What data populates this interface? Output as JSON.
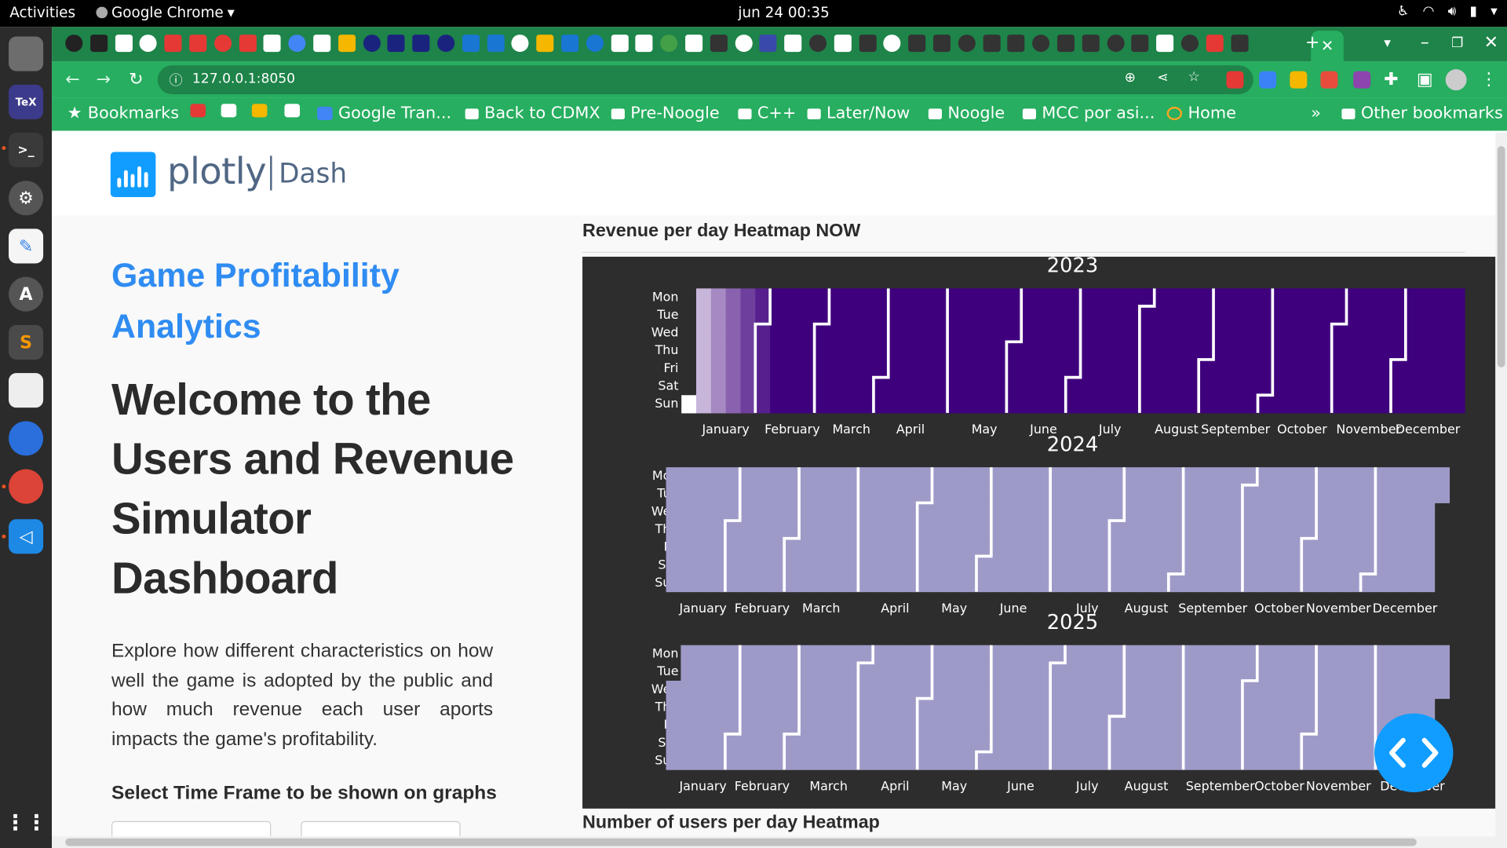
{
  "system": {
    "activities": "Activities",
    "app_name": "Google Chrome",
    "clock": "jun 24  00:35"
  },
  "browser": {
    "url": "127.0.0.1:8050",
    "bookmarks": [
      {
        "label": "Bookmarks",
        "icon": "star-icon"
      },
      {
        "label": "",
        "icon": "youtube-icon"
      },
      {
        "label": "",
        "icon": "gmail-icon"
      },
      {
        "label": "",
        "icon": "pinwheel-icon"
      },
      {
        "label": "",
        "icon": "google-icon"
      },
      {
        "label": "Google Tran...",
        "icon": "translate-icon"
      },
      {
        "label": "Back to CDMX",
        "icon": "folder-icon"
      },
      {
        "label": "Pre-Noogle",
        "icon": "folder-icon"
      },
      {
        "label": "C++",
        "icon": "folder-icon"
      },
      {
        "label": "Later/Now",
        "icon": "folder-icon"
      },
      {
        "label": "Noogle",
        "icon": "folder-icon"
      },
      {
        "label": "MCC por asi...",
        "icon": "folder-icon"
      },
      {
        "label": "Home",
        "icon": "loading-icon"
      }
    ],
    "more_bookmarks": "»",
    "other_bookmarks": "Other bookmarks"
  },
  "header": {
    "brand": "plotly",
    "product": "Dash"
  },
  "sidebar": {
    "app_title": "Game Profitability Analytics",
    "welcome": "Welcome to the Users and Revenue Simulator Dashboard",
    "description": "Explore how different characteristics on how well the game is adopted by the public and how much revenue each user aports impacts the game's profitability.",
    "select_label": "Select Time Frame to be shown on graphs"
  },
  "main": {
    "revenue_title": "Revenue per day Heatmap NOW",
    "users_title": "Number of users per day Heatmap"
  },
  "chart_data": {
    "type": "heatmap",
    "title": "Revenue per day Heatmap NOW",
    "weekday_labels": [
      "Mon",
      "Tue",
      "Wed",
      "Thu",
      "Fri",
      "Sat",
      "Sun"
    ],
    "month_labels": [
      "January",
      "February",
      "March",
      "April",
      "May",
      "June",
      "July",
      "August",
      "September",
      "October",
      "November",
      "December"
    ],
    "colors": {
      "background": "#2d2d2d",
      "low": "#ffffff",
      "high": "#3f007d",
      "empty": "#9e9ac8",
      "separator": "#ffffff"
    },
    "panels": [
      {
        "year": "2023",
        "first_weekday": 6,
        "days": 365,
        "fill": "gradient_first_weeks"
      },
      {
        "year": "2024",
        "first_weekday": 0,
        "days": 366,
        "fill": "uniform"
      },
      {
        "year": "2025",
        "first_weekday": 2,
        "days": 365,
        "fill": "uniform"
      }
    ]
  }
}
